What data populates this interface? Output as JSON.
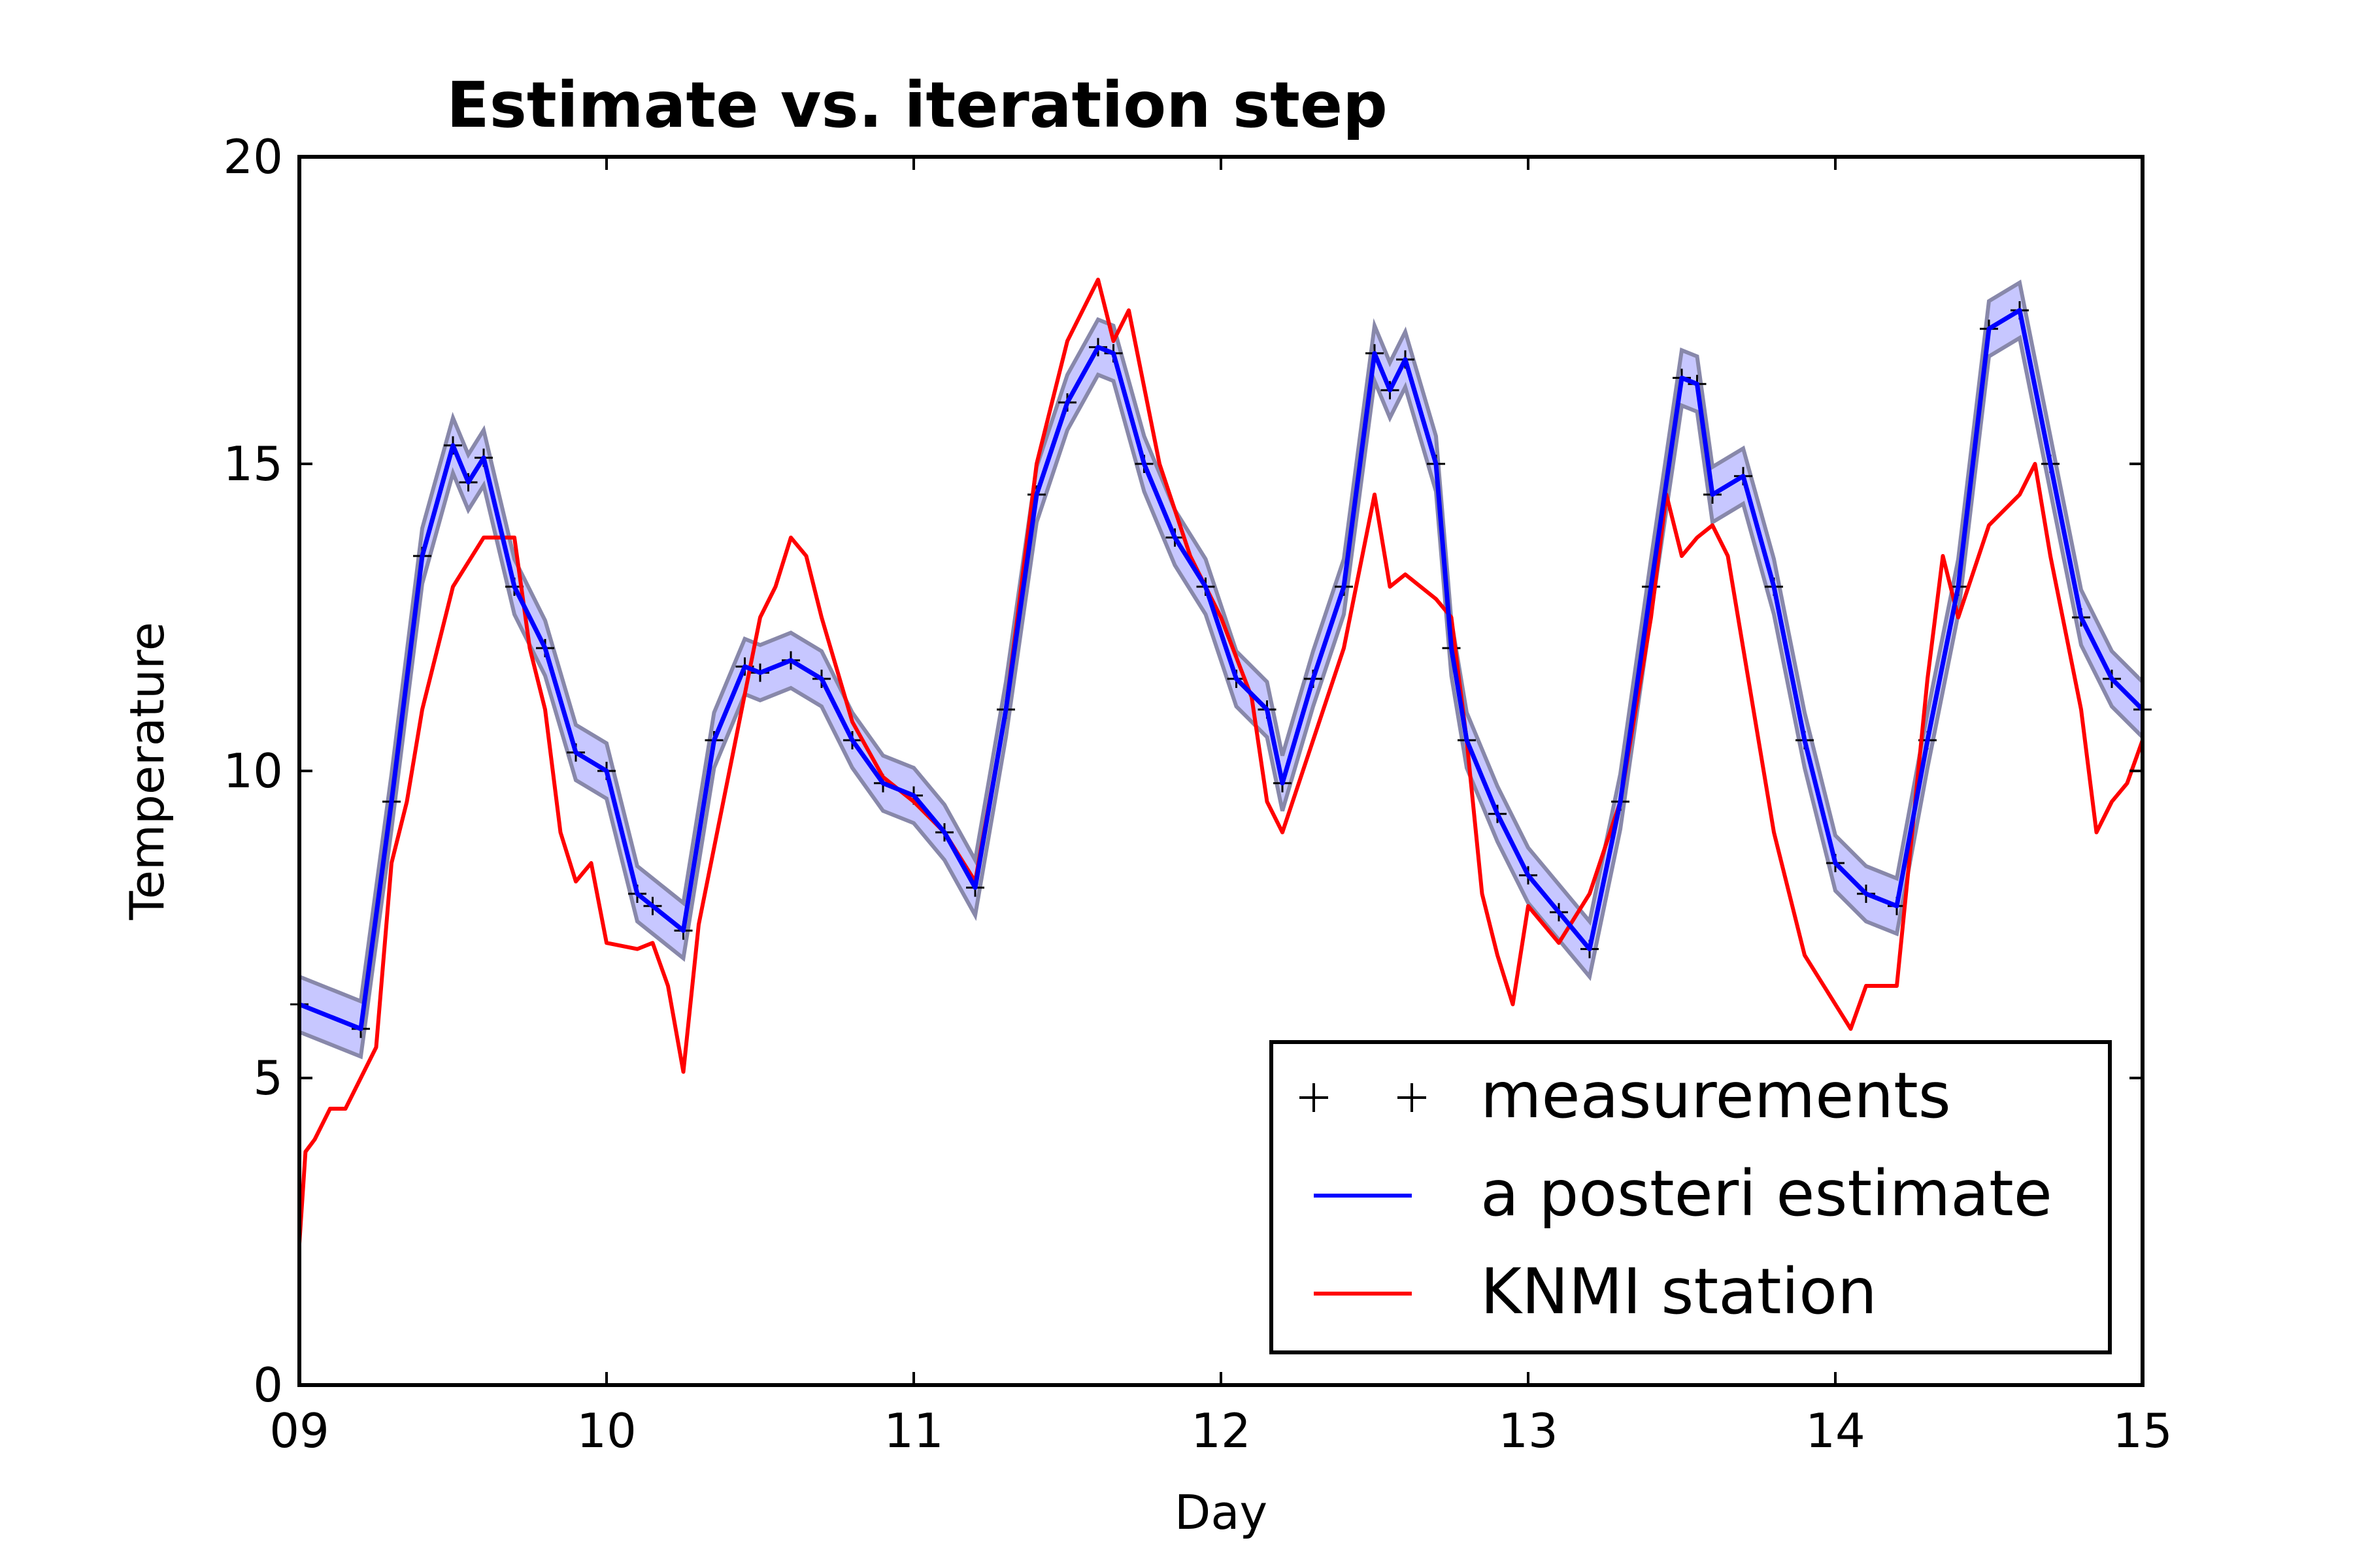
{
  "chart_data": {
    "type": "line",
    "title": "Estimate vs. iteration step",
    "xlabel": "Day",
    "ylabel": "Temperature",
    "xlim": [
      9,
      15
    ],
    "ylim": [
      0,
      20
    ],
    "xticks": [
      9,
      10,
      11,
      12,
      13,
      14,
      15
    ],
    "xtick_labels": [
      "09",
      "10",
      "11",
      "12",
      "13",
      "14",
      "15"
    ],
    "yticks": [
      0,
      5,
      10,
      15,
      20
    ],
    "ytick_labels": [
      "0",
      "5",
      "10",
      "15",
      "20"
    ],
    "grid": false,
    "legend_position": "lower-right",
    "uncertainty_band_halfwidth": 0.45,
    "colors": {
      "measurements": "#000000",
      "estimate": "#0000ff",
      "knmi": "#ff0000",
      "band_fill": "#9999ff",
      "band_edge": "#8888aa"
    },
    "series": [
      {
        "name": "measurements",
        "marker": "+",
        "x": [
          9.0,
          9.2,
          9.3,
          9.4,
          9.5,
          9.55,
          9.6,
          9.7,
          9.8,
          9.9,
          10.0,
          10.1,
          10.15,
          10.25,
          10.35,
          10.45,
          10.5,
          10.6,
          10.7,
          10.8,
          10.9,
          11.0,
          11.1,
          11.2,
          11.3,
          11.4,
          11.5,
          11.6,
          11.65,
          11.75,
          11.85,
          11.95,
          12.05,
          12.15,
          12.2,
          12.3,
          12.4,
          12.5,
          12.55,
          12.6,
          12.7,
          12.75,
          12.8,
          12.9,
          13.0,
          13.1,
          13.2,
          13.3,
          13.4,
          13.5,
          13.55,
          13.6,
          13.7,
          13.8,
          13.9,
          14.0,
          14.1,
          14.2,
          14.3,
          14.4,
          14.5,
          14.6,
          14.7,
          14.8,
          14.9,
          15.0
        ],
        "y": [
          6.2,
          5.8,
          9.5,
          13.5,
          15.3,
          14.7,
          15.1,
          13.0,
          12.0,
          10.3,
          10.0,
          8.0,
          7.8,
          7.4,
          10.5,
          11.7,
          11.6,
          11.8,
          11.5,
          10.5,
          9.8,
          9.6,
          9.0,
          8.1,
          11.0,
          14.5,
          16.0,
          16.9,
          16.8,
          15.0,
          13.8,
          13.0,
          11.5,
          11.0,
          9.8,
          11.5,
          13.0,
          16.8,
          16.2,
          16.7,
          15.0,
          12.0,
          10.5,
          9.3,
          8.3,
          7.7,
          7.1,
          9.5,
          13.0,
          16.4,
          16.3,
          14.5,
          14.8,
          13.0,
          10.5,
          8.5,
          8.0,
          7.8,
          10.5,
          13.0,
          17.2,
          17.5,
          15.0,
          12.5,
          11.5,
          11.0
        ]
      },
      {
        "name": "a posteri estimate",
        "x": [
          9.0,
          9.2,
          9.3,
          9.4,
          9.5,
          9.55,
          9.6,
          9.7,
          9.8,
          9.9,
          10.0,
          10.1,
          10.15,
          10.25,
          10.35,
          10.45,
          10.5,
          10.6,
          10.7,
          10.8,
          10.9,
          11.0,
          11.1,
          11.2,
          11.3,
          11.4,
          11.5,
          11.6,
          11.65,
          11.75,
          11.85,
          11.95,
          12.05,
          12.15,
          12.2,
          12.3,
          12.4,
          12.5,
          12.55,
          12.6,
          12.7,
          12.75,
          12.8,
          12.9,
          13.0,
          13.1,
          13.2,
          13.3,
          13.4,
          13.5,
          13.55,
          13.6,
          13.7,
          13.8,
          13.9,
          14.0,
          14.1,
          14.2,
          14.3,
          14.4,
          14.5,
          14.6,
          14.7,
          14.8,
          14.9,
          15.0
        ],
        "y": [
          6.2,
          5.8,
          9.5,
          13.5,
          15.3,
          14.7,
          15.1,
          13.0,
          12.0,
          10.3,
          10.0,
          8.0,
          7.8,
          7.4,
          10.5,
          11.7,
          11.6,
          11.8,
          11.5,
          10.5,
          9.8,
          9.6,
          9.0,
          8.1,
          11.0,
          14.5,
          16.0,
          16.9,
          16.8,
          15.0,
          13.8,
          13.0,
          11.5,
          11.0,
          9.8,
          11.5,
          13.0,
          16.8,
          16.2,
          16.7,
          15.0,
          12.0,
          10.5,
          9.3,
          8.3,
          7.7,
          7.1,
          9.5,
          13.0,
          16.4,
          16.3,
          14.5,
          14.8,
          13.0,
          10.5,
          8.5,
          8.0,
          7.8,
          10.5,
          13.0,
          17.2,
          17.5,
          15.0,
          12.5,
          11.5,
          11.0
        ]
      },
      {
        "name": "KNMI station",
        "x": [
          9.0,
          9.02,
          9.05,
          9.1,
          9.15,
          9.2,
          9.25,
          9.3,
          9.35,
          9.4,
          9.5,
          9.6,
          9.7,
          9.75,
          9.8,
          9.85,
          9.9,
          9.95,
          10.0,
          10.1,
          10.15,
          10.2,
          10.25,
          10.3,
          10.4,
          10.5,
          10.55,
          10.6,
          10.65,
          10.7,
          10.8,
          10.9,
          11.0,
          11.1,
          11.2,
          11.3,
          11.4,
          11.5,
          11.55,
          11.6,
          11.65,
          11.7,
          11.8,
          11.9,
          12.0,
          12.1,
          12.15,
          12.2,
          12.3,
          12.4,
          12.5,
          12.55,
          12.6,
          12.7,
          12.75,
          12.8,
          12.85,
          12.9,
          12.95,
          13.0,
          13.1,
          13.2,
          13.3,
          13.4,
          13.45,
          13.5,
          13.55,
          13.6,
          13.65,
          13.7,
          13.8,
          13.85,
          13.9,
          14.0,
          14.05,
          14.1,
          14.2,
          14.3,
          14.35,
          14.4,
          14.5,
          14.6,
          14.65,
          14.7,
          14.8,
          14.85,
          14.9,
          14.95,
          15.0
        ],
        "y": [
          2.3,
          3.8,
          4.0,
          4.5,
          4.5,
          5.0,
          5.5,
          8.5,
          9.5,
          11.0,
          13.0,
          13.8,
          13.8,
          12.0,
          11.0,
          9.0,
          8.2,
          8.5,
          7.2,
          7.1,
          7.2,
          6.5,
          5.1,
          7.5,
          10.0,
          12.5,
          13.0,
          13.8,
          13.5,
          12.5,
          10.8,
          9.9,
          9.5,
          9.0,
          8.2,
          11.0,
          15.0,
          17.0,
          17.5,
          18.0,
          17.0,
          17.5,
          15.0,
          13.5,
          12.5,
          11.2,
          9.5,
          9.0,
          10.5,
          12.0,
          14.5,
          13.0,
          13.2,
          12.8,
          12.5,
          10.5,
          8.0,
          7.0,
          6.2,
          7.8,
          7.2,
          8.0,
          9.5,
          12.5,
          14.5,
          13.5,
          13.8,
          14.0,
          13.5,
          12.0,
          9.0,
          8.0,
          7.0,
          6.2,
          5.8,
          6.5,
          6.5,
          11.5,
          13.5,
          12.5,
          14.0,
          14.5,
          15.0,
          13.5,
          11.0,
          9.0,
          9.5,
          9.8,
          10.5
        ]
      }
    ]
  }
}
